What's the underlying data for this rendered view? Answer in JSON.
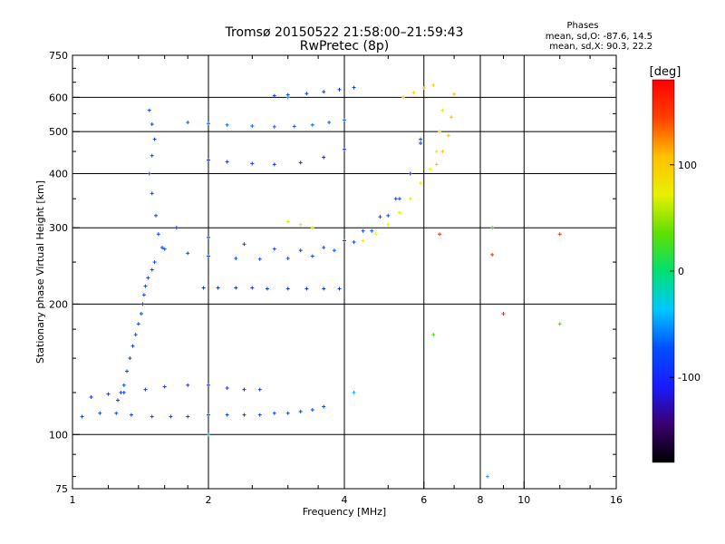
{
  "chart_data": {
    "type": "scatter",
    "title": "Tromsø 20150522 21:58:00–21:59:43",
    "subtitle": "RwPretec (8p)",
    "xlabel": "Frequency [MHz]",
    "ylabel": "Stationary phase Virtual Height [km]",
    "x_scale": "log",
    "y_scale": "log",
    "xlim": [
      1,
      16
    ],
    "ylim": [
      75,
      750
    ],
    "x_ticks": [
      1,
      2,
      4,
      6,
      8,
      10,
      16
    ],
    "x_tick_labels": [
      "1",
      "2",
      "4",
      "6",
      "8",
      "10",
      "16"
    ],
    "y_ticks": [
      75,
      100,
      200,
      300,
      400,
      500,
      600,
      750
    ],
    "y_tick_labels": [
      "75",
      "100",
      "200",
      "300",
      "400",
      "500",
      "600",
      "750"
    ],
    "x_minor_ticks": [
      1.2,
      1.4,
      1.6,
      1.8,
      2.5,
      3,
      3.5,
      5,
      7,
      9,
      12,
      14
    ],
    "y_minor_ticks": [
      80,
      90,
      125,
      150,
      175,
      250,
      350,
      450,
      550,
      650,
      700
    ],
    "grid": true,
    "stats": {
      "title": "Phases",
      "line_o": "mean, sd,O: -87.6, 14.5",
      "line_x": "mean, sd,X:  90.3, 22.2"
    },
    "colorbar": {
      "label": "[deg]",
      "range": [
        -180,
        180
      ],
      "ticks": [
        100,
        0,
        -100
      ],
      "tick_labels": [
        "100",
        "0",
        "-100"
      ],
      "colors": [
        "#000000",
        "#3a0070",
        "#1a1aff",
        "#0050ff",
        "#00c8ff",
        "#00e070",
        "#60e000",
        "#e8f000",
        "#ffc000",
        "#ff4000",
        "#ff0000"
      ]
    },
    "series": [
      {
        "phase": -100,
        "color": "#0044ff",
        "x": [
          1.48,
          1.5,
          1.52,
          1.5,
          1.48,
          1.5,
          1.53,
          1.55,
          1.58,
          1.52,
          1.5,
          1.47,
          1.45,
          1.44,
          1.43,
          1.42,
          1.4,
          1.38,
          1.36,
          1.34,
          1.32,
          1.3,
          1.28,
          1.26
        ],
        "y": [
          560,
          520,
          480,
          440,
          400,
          360,
          320,
          290,
          270,
          250,
          240,
          230,
          220,
          210,
          200,
          190,
          180,
          170,
          160,
          150,
          140,
          130,
          125,
          120
        ]
      },
      {
        "phase": -95,
        "color": "#0050ff",
        "x": [
          1.6,
          1.8,
          2.0,
          2.3,
          2.6,
          3.0,
          3.4,
          3.8,
          4.2,
          4.6,
          5.0,
          5.3,
          5.6,
          5.9
        ],
        "y": [
          268,
          262,
          258,
          255,
          254,
          255,
          258,
          266,
          278,
          295,
          320,
          350,
          400,
          480
        ]
      },
      {
        "phase": -90,
        "color": "#1a3cff",
        "x": [
          1.7,
          2.0,
          2.4,
          2.8,
          3.2,
          3.6,
          4.0,
          4.4,
          4.8,
          5.2,
          5.6,
          5.9
        ],
        "y": [
          300,
          285,
          275,
          268,
          266,
          270,
          280,
          295,
          318,
          350,
          400,
          470
        ]
      },
      {
        "phase": -85,
        "color": "#0064ff",
        "x": [
          1.8,
          2.0,
          2.2,
          2.5,
          2.8,
          3.1,
          3.4,
          3.7,
          4.0
        ],
        "y": [
          525,
          522,
          518,
          515,
          513,
          514,
          518,
          525,
          532
        ]
      },
      {
        "phase": -90,
        "color": "#1030ff",
        "x": [
          2.0,
          2.2,
          2.5,
          2.8,
          3.2,
          3.6,
          4.0
        ],
        "y": [
          430,
          426,
          422,
          420,
          424,
          436,
          455
        ]
      },
      {
        "phase": -95,
        "color": "#0040ff",
        "x": [
          2.8,
          3.0,
          3.3,
          3.6,
          3.9,
          4.2
        ],
        "y": [
          605,
          608,
          612,
          618,
          625,
          632
        ]
      },
      {
        "phase": -100,
        "color": "#0038ff",
        "x": [
          1.95,
          2.1,
          2.3,
          2.5,
          2.7,
          3.0,
          3.3,
          3.6,
          3.9
        ],
        "y": [
          218,
          218,
          218,
          218,
          217,
          217,
          217,
          217,
          217
        ]
      },
      {
        "phase": -95,
        "color": "#0048ff",
        "x": [
          1.05,
          1.15,
          1.25,
          1.35,
          1.5,
          1.65,
          1.8,
          2.0,
          2.2,
          2.4,
          2.6,
          2.8,
          3.0,
          3.2,
          3.4,
          3.6
        ],
        "y": [
          110,
          112,
          112,
          111,
          110,
          110,
          110,
          111,
          111,
          111,
          111,
          112,
          112,
          113,
          114,
          116
        ]
      },
      {
        "phase": -90,
        "color": "#2030ff",
        "x": [
          1.1,
          1.2,
          1.3,
          1.45,
          1.6,
          1.8,
          2.0,
          2.2,
          2.4,
          2.6
        ],
        "y": [
          122,
          124,
          125,
          127,
          129,
          130,
          130,
          128,
          127,
          127
        ]
      },
      {
        "phase": 100,
        "color": "#e8f000",
        "x": [
          4.4,
          4.7,
          5.0,
          5.3,
          5.6,
          5.9,
          6.2,
          6.4,
          6.5,
          6.6
        ],
        "y": [
          280,
          290,
          305,
          325,
          350,
          380,
          410,
          450,
          500,
          560
        ]
      },
      {
        "phase": 120,
        "color": "#ffc000",
        "x": [
          6.4,
          6.6,
          6.8,
          6.9,
          7.0
        ],
        "y": [
          420,
          450,
          490,
          540,
          610
        ]
      },
      {
        "phase": 100,
        "color": "#d8f000",
        "x": [
          3.0,
          3.2,
          3.4
        ],
        "y": [
          310,
          305,
          300
        ]
      },
      {
        "phase": 110,
        "color": "#ffd000",
        "x": [
          5.4,
          5.7,
          6.0,
          6.3
        ],
        "y": [
          600,
          615,
          630,
          640
        ]
      },
      {
        "phase": 30,
        "color": "#40e000",
        "x": [
          6.3,
          8.5,
          12.0
        ],
        "y": [
          170,
          300,
          180
        ]
      },
      {
        "phase": 160,
        "color": "#ff3000",
        "x": [
          6.5,
          8.5,
          9.0,
          12.0
        ],
        "y": [
          290,
          260,
          190,
          290
        ]
      },
      {
        "phase": -60,
        "color": "#00b0ff",
        "x": [
          2.0,
          3.0,
          4.2,
          8.3
        ],
        "y": [
          100,
          600,
          125,
          80
        ]
      }
    ]
  }
}
